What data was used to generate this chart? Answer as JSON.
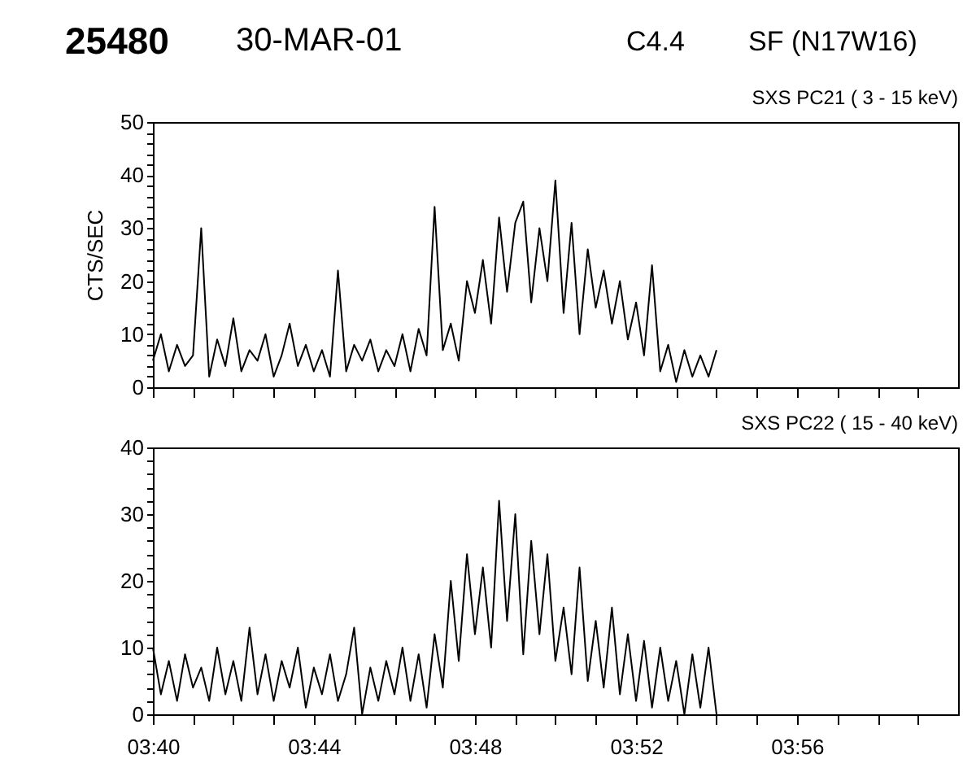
{
  "chart_data": [
    {
      "type": "line",
      "title": "SXS PC21  (  3 - 15 keV)",
      "ylabel": "CTS/SEC",
      "annotations": [
        "25480",
        "30-MAR-01",
        "C4.4",
        "SF (N17W16)"
      ],
      "tick_labels": "y",
      "grid": false,
      "legend": false,
      "line_style": "solid",
      "marker": "none",
      "xlim": [
        3.6667,
        4.0
      ],
      "ylim": [
        0,
        50
      ],
      "xticks": [
        {
          "value": 3.6667,
          "label": null
        },
        {
          "value": 3.6833,
          "label": null
        },
        {
          "value": 3.7,
          "label": null
        },
        {
          "value": 3.7167,
          "label": null
        },
        {
          "value": 3.7333,
          "label": null
        },
        {
          "value": 3.75,
          "label": null
        },
        {
          "value": 3.7667,
          "label": null
        },
        {
          "value": 3.7833,
          "label": null
        },
        {
          "value": 3.8,
          "label": null
        },
        {
          "value": 3.8167,
          "label": null
        },
        {
          "value": 3.8333,
          "label": null
        },
        {
          "value": 3.85,
          "label": null
        },
        {
          "value": 3.8667,
          "label": null
        },
        {
          "value": 3.8833,
          "label": null
        },
        {
          "value": 3.9,
          "label": null
        },
        {
          "value": 3.9167,
          "label": null
        },
        {
          "value": 3.9333,
          "label": null
        },
        {
          "value": 3.95,
          "label": null
        },
        {
          "value": 3.9667,
          "label": null
        },
        {
          "value": 3.9833,
          "label": null
        }
      ],
      "yticks": [
        0,
        {
          "value": 2,
          "label": null
        },
        {
          "value": 4,
          "label": null
        },
        {
          "value": 6,
          "label": null
        },
        {
          "value": 8,
          "label": null
        },
        10,
        {
          "value": 12,
          "label": null
        },
        {
          "value": 14,
          "label": null
        },
        {
          "value": 16,
          "label": null
        },
        {
          "value": 18,
          "label": null
        },
        20,
        {
          "value": 22,
          "label": null
        },
        {
          "value": 24,
          "label": null
        },
        {
          "value": 26,
          "label": null
        },
        {
          "value": 28,
          "label": null
        },
        30,
        {
          "value": 32,
          "label": null
        },
        {
          "value": 34,
          "label": null
        },
        {
          "value": 36,
          "label": null
        },
        {
          "value": 38,
          "label": null
        },
        40,
        {
          "value": 42,
          "label": null
        },
        {
          "value": 44,
          "label": null
        },
        {
          "value": 46,
          "label": null
        },
        {
          "value": 48,
          "label": null
        },
        50
      ],
      "x": [
        3.6667,
        3.67,
        3.6733,
        3.6767,
        3.68,
        3.6833,
        3.6867,
        3.69,
        3.6933,
        3.6967,
        3.7,
        3.7033,
        3.7067,
        3.71,
        3.7133,
        3.7167,
        3.72,
        3.7233,
        3.7267,
        3.73,
        3.7333,
        3.7367,
        3.74,
        3.7433,
        3.7467,
        3.75,
        3.7533,
        3.7567,
        3.76,
        3.7633,
        3.7667,
        3.77,
        3.7733,
        3.7767,
        3.78,
        3.7833,
        3.7867,
        3.79,
        3.7933,
        3.7967,
        3.8,
        3.8033,
        3.8067,
        3.81,
        3.8133,
        3.8167,
        3.82,
        3.8233,
        3.8267,
        3.83,
        3.8333,
        3.8367,
        3.84,
        3.8433,
        3.8467,
        3.85,
        3.8533,
        3.8567,
        3.86,
        3.8633,
        3.8667,
        3.87,
        3.8733,
        3.8767,
        3.88,
        3.8833,
        3.8867,
        3.89,
        3.8933,
        3.8967,
        3.9
      ],
      "series": [
        {
          "color": "#000000",
          "values": [
            5,
            10,
            3,
            8,
            4,
            6,
            30,
            2,
            9,
            4,
            13,
            3,
            7,
            5,
            10,
            2,
            6,
            12,
            4,
            8,
            3,
            7,
            2,
            22,
            3,
            8,
            5,
            9,
            3,
            7,
            4,
            10,
            3,
            11,
            6,
            34,
            7,
            12,
            5,
            20,
            14,
            24,
            12,
            32,
            18,
            31,
            35,
            16,
            30,
            20,
            39,
            14,
            31,
            10,
            26,
            15,
            22,
            12,
            20,
            9,
            16,
            6,
            23,
            3,
            8,
            1,
            7,
            2,
            6,
            2,
            7
          ]
        }
      ]
    },
    {
      "type": "line",
      "title": "SXS PC22  ( 15 - 40 keV)",
      "grid": false,
      "legend": false,
      "line_style": "solid",
      "marker": "none",
      "xlim": [
        3.6667,
        4.0
      ],
      "ylim": [
        0,
        40
      ],
      "xticks": [
        {
          "value": 3.6667,
          "label": "03:40"
        },
        {
          "value": 3.6833,
          "label": null
        },
        {
          "value": 3.7,
          "label": null
        },
        {
          "value": 3.7167,
          "label": null
        },
        {
          "value": 3.7333,
          "label": "03:44"
        },
        {
          "value": 3.75,
          "label": null
        },
        {
          "value": 3.7667,
          "label": null
        },
        {
          "value": 3.7833,
          "label": null
        },
        {
          "value": 3.8,
          "label": "03:48"
        },
        {
          "value": 3.8167,
          "label": null
        },
        {
          "value": 3.8333,
          "label": null
        },
        {
          "value": 3.85,
          "label": null
        },
        {
          "value": 3.8667,
          "label": "03:52"
        },
        {
          "value": 3.8833,
          "label": null
        },
        {
          "value": 3.9,
          "label": null
        },
        {
          "value": 3.9167,
          "label": null
        },
        {
          "value": 3.9333,
          "label": "03:56"
        },
        {
          "value": 3.95,
          "label": null
        },
        {
          "value": 3.9667,
          "label": null
        },
        {
          "value": 3.9833,
          "label": null
        }
      ],
      "yticks": [
        0,
        {
          "value": 2,
          "label": null
        },
        {
          "value": 4,
          "label": null
        },
        {
          "value": 6,
          "label": null
        },
        {
          "value": 8,
          "label": null
        },
        10,
        {
          "value": 12,
          "label": null
        },
        {
          "value": 14,
          "label": null
        },
        {
          "value": 16,
          "label": null
        },
        {
          "value": 18,
          "label": null
        },
        20,
        {
          "value": 22,
          "label": null
        },
        {
          "value": 24,
          "label": null
        },
        {
          "value": 26,
          "label": null
        },
        {
          "value": 28,
          "label": null
        },
        30,
        {
          "value": 32,
          "label": null
        },
        {
          "value": 34,
          "label": null
        },
        {
          "value": 36,
          "label": null
        },
        {
          "value": 38,
          "label": null
        },
        40
      ],
      "x": [
        3.6667,
        3.67,
        3.6733,
        3.6767,
        3.68,
        3.6833,
        3.6867,
        3.69,
        3.6933,
        3.6967,
        3.7,
        3.7033,
        3.7067,
        3.71,
        3.7133,
        3.7167,
        3.72,
        3.7233,
        3.7267,
        3.73,
        3.7333,
        3.7367,
        3.74,
        3.7433,
        3.7467,
        3.75,
        3.7533,
        3.7567,
        3.76,
        3.7633,
        3.7667,
        3.77,
        3.7733,
        3.7767,
        3.78,
        3.7833,
        3.7867,
        3.79,
        3.7933,
        3.7967,
        3.8,
        3.8033,
        3.8067,
        3.81,
        3.8133,
        3.8167,
        3.82,
        3.8233,
        3.8267,
        3.83,
        3.8333,
        3.8367,
        3.84,
        3.8433,
        3.8467,
        3.85,
        3.8533,
        3.8567,
        3.86,
        3.8633,
        3.8667,
        3.87,
        3.8733,
        3.8767,
        3.88,
        3.8833,
        3.8867,
        3.89,
        3.8933,
        3.8967,
        3.9
      ],
      "series": [
        {
          "color": "#000000",
          "values": [
            10,
            3,
            8,
            2,
            9,
            4,
            7,
            2,
            10,
            3,
            8,
            2,
            13,
            3,
            9,
            2,
            8,
            4,
            10,
            1,
            7,
            3,
            9,
            2,
            6,
            13,
            0,
            7,
            2,
            8,
            3,
            10,
            2,
            9,
            1,
            12,
            4,
            20,
            8,
            24,
            12,
            22,
            10,
            32,
            14,
            30,
            9,
            26,
            12,
            24,
            8,
            16,
            6,
            22,
            5,
            14,
            4,
            16,
            3,
            12,
            2,
            11,
            1,
            10,
            2,
            8,
            0,
            9,
            1,
            10,
            0
          ]
        }
      ]
    }
  ]
}
